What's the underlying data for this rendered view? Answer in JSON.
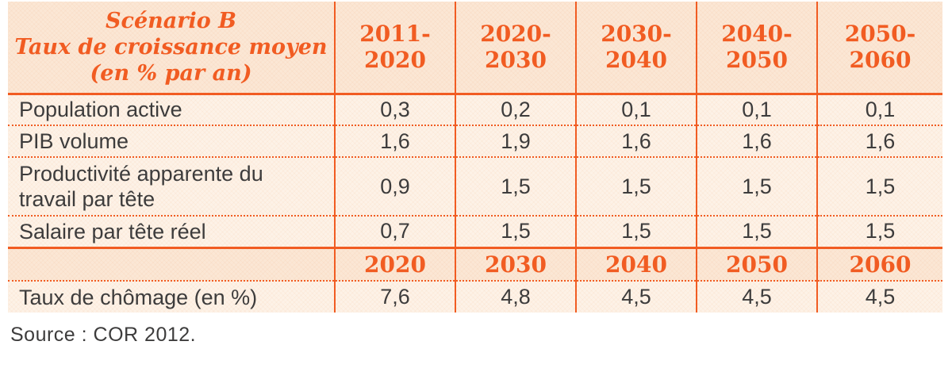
{
  "colors": {
    "accent_orange": "#f15c22",
    "header_bg": "#fbe7d5",
    "body_bg": "#fdf2e7",
    "text_dark": "#3d3c3c"
  },
  "table": {
    "header": {
      "title_lines": [
        "Scénario B",
        "Taux de croissance moyen",
        "(en % par an)"
      ],
      "columns": [
        "2011-2020",
        "2020-2030",
        "2030-2040",
        "2040-2050",
        "2050-2060"
      ]
    },
    "rows": [
      {
        "label": "Population active",
        "values": [
          "0,3",
          "0,2",
          "0,1",
          "0,1",
          "0,1"
        ]
      },
      {
        "label": "PIB volume",
        "values": [
          "1,6",
          "1,9",
          "1,6",
          "1,6",
          "1,6"
        ]
      },
      {
        "label": "Productivité apparente du travail par tête",
        "values": [
          "0,9",
          "1,5",
          "1,5",
          "1,5",
          "1,5"
        ]
      },
      {
        "label": "Salaire par tête réel",
        "values": [
          "0,7",
          "1,5",
          "1,5",
          "1,5",
          "1,5"
        ]
      }
    ],
    "subheader": {
      "columns": [
        "2020",
        "2030",
        "2040",
        "2050",
        "2060"
      ]
    },
    "rows2": [
      {
        "label": "Taux de chômage (en %)",
        "values": [
          "7,6",
          "4,8",
          "4,5",
          "4,5",
          "4,5"
        ]
      }
    ]
  },
  "source": "Source : COR 2012."
}
